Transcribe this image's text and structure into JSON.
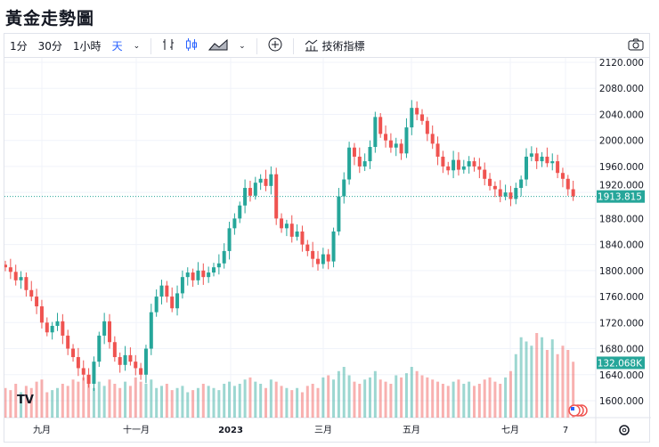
{
  "title": "黃金走勢圖",
  "toolbar": {
    "intervals": [
      "1分",
      "30分",
      "1小時",
      "天"
    ],
    "selected_interval": "天",
    "indicators_label": "技術指標"
  },
  "icons": {
    "bars": "bar-chart-icon",
    "candles": "candlestick-icon",
    "area": "area-chart-icon",
    "add": "plus-circle-icon",
    "indicators": "indicators-icon",
    "snapshot": "camera-icon",
    "settings": "gear-icon",
    "logo": "tradingview-logo",
    "flag": "us-flag-icon"
  },
  "colors": {
    "up": "#26a69a",
    "down": "#ef5350",
    "accent": "#2962ff",
    "price_tag": "#26a69a"
  },
  "chart_data": {
    "type": "candlestick",
    "price_axis": {
      "ticks": [
        "2120.000",
        "2080.000",
        "2040.000",
        "2000.000",
        "1960.000",
        "1920.000",
        "1880.000",
        "1840.000",
        "1800.000",
        "1760.000",
        "1720.000",
        "1680.000",
        "1640.000",
        "1600.000"
      ],
      "range": [
        1600,
        2120
      ]
    },
    "time_axis": {
      "ticks": [
        "九月",
        "十一月",
        "2023",
        "三月",
        "五月",
        "七月",
        "7"
      ]
    },
    "last_price": "1913.815",
    "last_volume": "132.068K",
    "closes": [
      1805,
      1798,
      1785,
      1790,
      1770,
      1760,
      1745,
      1720,
      1705,
      1715,
      1722,
      1700,
      1680,
      1667,
      1650,
      1640,
      1626,
      1660,
      1700,
      1722,
      1690,
      1667,
      1655,
      1670,
      1660,
      1650,
      1640,
      1680,
      1736,
      1760,
      1777,
      1760,
      1742,
      1765,
      1790,
      1797,
      1785,
      1800,
      1790,
      1797,
      1805,
      1811,
      1830,
      1865,
      1880,
      1900,
      1927,
      1915,
      1935,
      1941,
      1930,
      1948,
      1880,
      1865,
      1872,
      1852,
      1860,
      1840,
      1830,
      1818,
      1810,
      1825,
      1814,
      1860,
      1914,
      1940,
      1989,
      1975,
      1960,
      1968,
      1990,
      2036,
      2010,
      2000,
      1989,
      1995,
      1980,
      2020,
      2050,
      2040,
      2030,
      2010,
      1995,
      1975,
      1960,
      1954,
      1970,
      1955,
      1960,
      1968,
      1960,
      1955,
      1941,
      1930,
      1925,
      1914,
      1920,
      1910,
      1927,
      1940,
      1975,
      1980,
      1968,
      1975,
      1965,
      1968,
      1950,
      1941,
      1925,
      1914
    ],
    "volumes_k": [
      70,
      65,
      80,
      60,
      75,
      70,
      85,
      90,
      60,
      65,
      70,
      80,
      75,
      90,
      85,
      95,
      80,
      70,
      85,
      75,
      90,
      80,
      70,
      85,
      75,
      95,
      85,
      80,
      90,
      70,
      75,
      80,
      65,
      70,
      75,
      60,
      65,
      70,
      80,
      75,
      70,
      65,
      80,
      85,
      75,
      80,
      90,
      95,
      85,
      80,
      70,
      90,
      85,
      75,
      70,
      65,
      70,
      60,
      75,
      80,
      70,
      95,
      100,
      90,
      110,
      120,
      100,
      85,
      80,
      90,
      95,
      110,
      90,
      85,
      80,
      100,
      95,
      105,
      120,
      110,
      100,
      95,
      90,
      85,
      80,
      75,
      85,
      90,
      80,
      85,
      75,
      80,
      90,
      95,
      85,
      80,
      95,
      110,
      150,
      190,
      180,
      170,
      200,
      190,
      160,
      185,
      150,
      170,
      160,
      132.068
    ]
  }
}
